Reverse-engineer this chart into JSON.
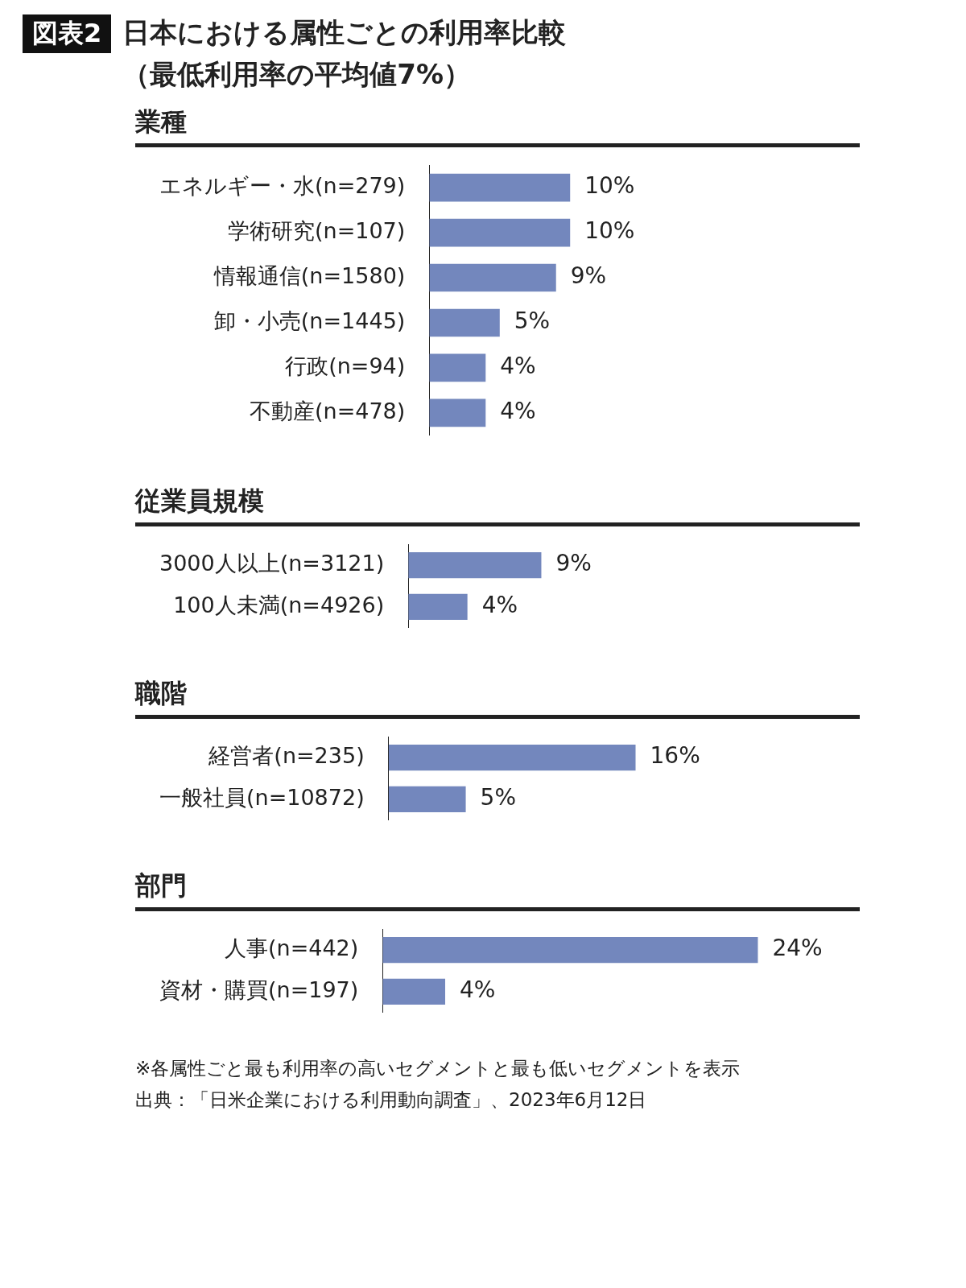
{
  "chart_data": [
    {
      "type": "other",
      "title": "日本における属性ごとの利用率比較",
      "subtitle": "（最低利用率の平均値7%）",
      "annotations": [
        "図表2"
      ]
    },
    {
      "type": "bar",
      "orientation": "horizontal",
      "title": "業種",
      "color": "#7387bd",
      "categories": [
        "エネルギー・水(n=279)",
        "学術研究(n=107)",
        "情報通信(n=1580)",
        "卸・小売(n=1445)",
        "行政(n=94)",
        "不動産(n=478)"
      ],
      "values": [
        10,
        10,
        9,
        5,
        4,
        4
      ],
      "value_labels": [
        "10%",
        "10%",
        "9%",
        "5%",
        "4%",
        "4%"
      ]
    },
    {
      "type": "bar",
      "orientation": "horizontal",
      "title": "従業員規模",
      "color": "#7387bd",
      "categories": [
        "3000人以上(n=3121)",
        "100人未満(n=4926)"
      ],
      "values": [
        9,
        4
      ],
      "value_labels": [
        "9%",
        "4%"
      ]
    },
    {
      "type": "bar",
      "orientation": "horizontal",
      "title": "職階",
      "color": "#7387bd",
      "categories": [
        "経営者(n=235)",
        "一般社員(n=10872)"
      ],
      "values": [
        16,
        5
      ],
      "value_labels": [
        "16%",
        "5%"
      ]
    },
    {
      "type": "bar",
      "orientation": "horizontal",
      "title": "部門",
      "color": "#7387bd",
      "categories": [
        "人事(n=442)",
        "資材・購買(n=197)"
      ],
      "values": [
        24,
        4
      ],
      "value_labels": [
        "24%",
        "4%"
      ]
    },
    {
      "type": "other",
      "annotations": [
        "※各属性ごと最も利用率の高いセグメントと最も低いセグメントを表示",
        "出典：「日米企業における利用動向調査」、2023年6月12日"
      ]
    }
  ]
}
